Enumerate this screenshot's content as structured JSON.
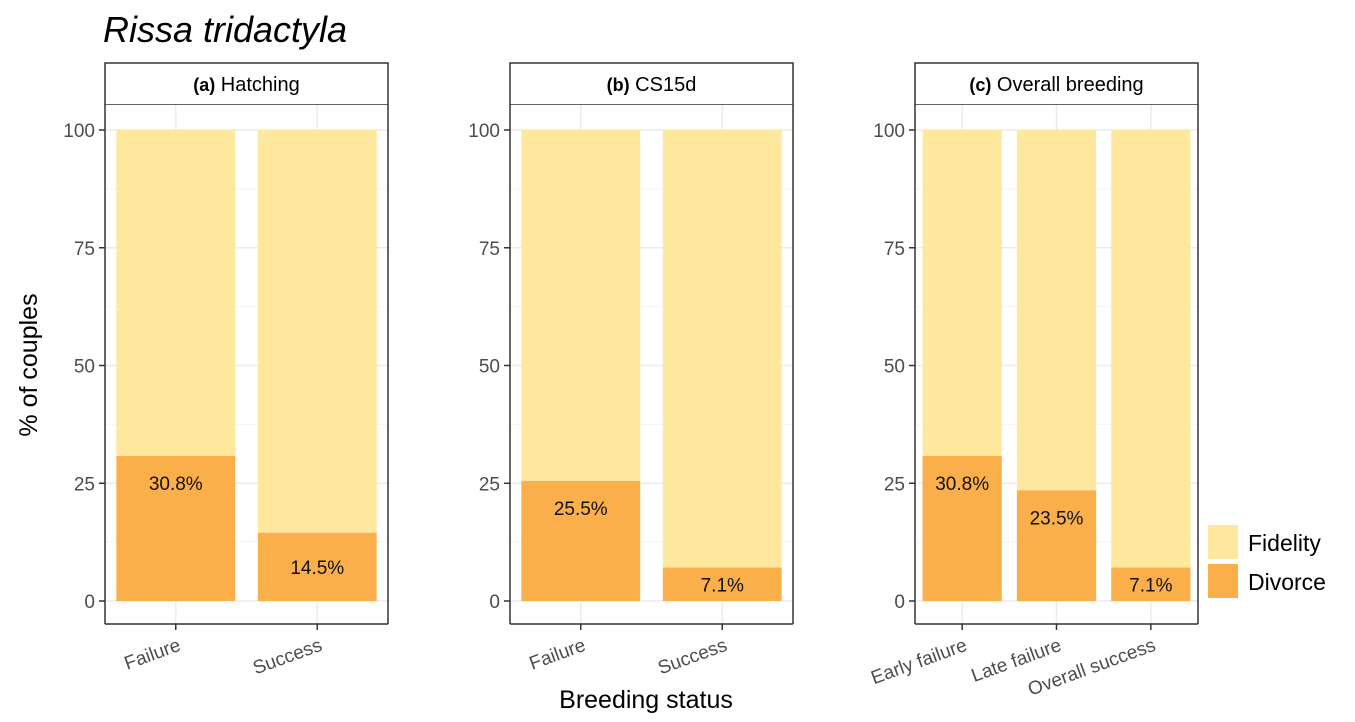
{
  "title": "Rissa tridactyla",
  "ylabel": "% of couples",
  "xlabel": "Breeding status",
  "colors": {
    "fidelity": "#FDE89E",
    "divorce": "#FAAF4A",
    "grid": "#EBEBEB",
    "axis": "#333333"
  },
  "legend": {
    "position": "right",
    "items": [
      {
        "label": "Fidelity",
        "key": "fidelity"
      },
      {
        "label": "Divorce",
        "key": "divorce"
      }
    ]
  },
  "chart_data": [
    {
      "type": "bar",
      "stacked": true,
      "panel_tag": "(a)",
      "panel_name": "Hatching",
      "categories": [
        "Failure",
        "Success"
      ],
      "series": [
        {
          "name": "Divorce",
          "values": [
            30.8,
            14.5
          ]
        },
        {
          "name": "Fidelity",
          "values": [
            69.2,
            85.5
          ]
        }
      ],
      "labels": [
        "30.8%",
        "14.5%"
      ],
      "ylim": [
        0,
        100
      ],
      "yticks": [
        0,
        25,
        50,
        75,
        100
      ],
      "grid": true
    },
    {
      "type": "bar",
      "stacked": true,
      "panel_tag": "(b)",
      "panel_name": "CS15d",
      "categories": [
        "Failure",
        "Success"
      ],
      "series": [
        {
          "name": "Divorce",
          "values": [
            25.5,
            7.1
          ]
        },
        {
          "name": "Fidelity",
          "values": [
            74.5,
            92.9
          ]
        }
      ],
      "labels": [
        "25.5%",
        "7.1%"
      ],
      "ylim": [
        0,
        100
      ],
      "yticks": [
        0,
        25,
        50,
        75,
        100
      ],
      "grid": true
    },
    {
      "type": "bar",
      "stacked": true,
      "panel_tag": "(c)",
      "panel_name": "Overall breeding",
      "categories": [
        "Early failure",
        "Late failure",
        "Overall success"
      ],
      "series": [
        {
          "name": "Divorce",
          "values": [
            30.8,
            23.5,
            7.1
          ]
        },
        {
          "name": "Fidelity",
          "values": [
            69.2,
            76.5,
            92.9
          ]
        }
      ],
      "labels": [
        "30.8%",
        "23.5%",
        "7.1%"
      ],
      "ylim": [
        0,
        100
      ],
      "yticks": [
        0,
        25,
        50,
        75,
        100
      ],
      "grid": true
    }
  ]
}
